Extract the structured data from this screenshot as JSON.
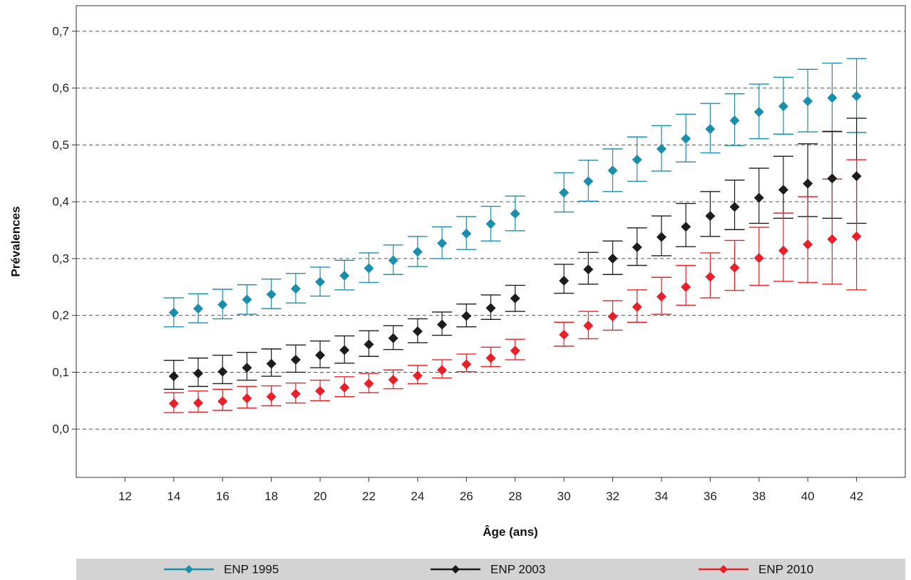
{
  "chart_data": {
    "type": "scatter",
    "xlabel": "Âge (ans)",
    "ylabel": "Prévalences",
    "xlim": [
      10,
      44
    ],
    "ylim": [
      -0.085,
      0.745
    ],
    "x_ticks": [
      "12",
      "14",
      "16",
      "18",
      "20",
      "22",
      "24",
      "26",
      "28",
      "30",
      "32",
      "34",
      "36",
      "38",
      "40",
      "42"
    ],
    "y_ticks": [
      "0,0",
      "0,1",
      "0,2",
      "0,3",
      "0,4",
      "0,5",
      "0,6",
      "0,7"
    ],
    "grid": "horizontal-dashed",
    "legend_position": "bottom",
    "series": [
      {
        "name": "ENP 1995",
        "color": "#1a8fac",
        "x": [
          14,
          15,
          16,
          17,
          18,
          19,
          20,
          21,
          22,
          23,
          24,
          25,
          26,
          27,
          28,
          30,
          31,
          32,
          33,
          34,
          35,
          36,
          37,
          38,
          39,
          40,
          41,
          42
        ],
        "values": [
          0.205,
          0.212,
          0.219,
          0.228,
          0.237,
          0.247,
          0.259,
          0.27,
          0.283,
          0.297,
          0.312,
          0.327,
          0.344,
          0.361,
          0.379,
          0.416,
          0.436,
          0.455,
          0.474,
          0.493,
          0.511,
          0.528,
          0.543,
          0.558,
          0.568,
          0.577,
          0.583,
          0.586
        ],
        "lower": [
          0.18,
          0.187,
          0.194,
          0.202,
          0.212,
          0.222,
          0.234,
          0.245,
          0.258,
          0.272,
          0.286,
          0.3,
          0.316,
          0.331,
          0.349,
          0.382,
          0.401,
          0.418,
          0.436,
          0.454,
          0.47,
          0.486,
          0.499,
          0.511,
          0.519,
          0.523,
          0.523,
          0.522
        ],
        "upper": [
          0.231,
          0.238,
          0.246,
          0.254,
          0.264,
          0.274,
          0.285,
          0.297,
          0.31,
          0.324,
          0.339,
          0.356,
          0.374,
          0.392,
          0.41,
          0.451,
          0.473,
          0.493,
          0.514,
          0.534,
          0.554,
          0.573,
          0.59,
          0.607,
          0.619,
          0.633,
          0.644,
          0.652
        ]
      },
      {
        "name": "ENP 2003",
        "color": "#1c1c1c",
        "x": [
          14,
          15,
          16,
          17,
          18,
          19,
          20,
          21,
          22,
          23,
          24,
          25,
          26,
          27,
          28,
          30,
          31,
          32,
          33,
          34,
          35,
          36,
          37,
          38,
          39,
          40,
          41,
          42
        ],
        "values": [
          0.093,
          0.098,
          0.101,
          0.108,
          0.115,
          0.122,
          0.13,
          0.139,
          0.149,
          0.16,
          0.172,
          0.184,
          0.199,
          0.213,
          0.23,
          0.261,
          0.281,
          0.3,
          0.32,
          0.338,
          0.356,
          0.375,
          0.391,
          0.407,
          0.421,
          0.432,
          0.441,
          0.445
        ],
        "lower": [
          0.07,
          0.075,
          0.08,
          0.086,
          0.093,
          0.1,
          0.108,
          0.116,
          0.128,
          0.14,
          0.152,
          0.165,
          0.18,
          0.193,
          0.207,
          0.239,
          0.255,
          0.272,
          0.288,
          0.305,
          0.321,
          0.339,
          0.351,
          0.362,
          0.371,
          0.374,
          0.371,
          0.362
        ],
        "upper": [
          0.121,
          0.125,
          0.13,
          0.135,
          0.141,
          0.148,
          0.155,
          0.164,
          0.173,
          0.182,
          0.194,
          0.206,
          0.22,
          0.236,
          0.253,
          0.29,
          0.311,
          0.331,
          0.354,
          0.375,
          0.397,
          0.418,
          0.438,
          0.459,
          0.48,
          0.502,
          0.524,
          0.547
        ]
      },
      {
        "name": "ENP 2010",
        "color": "#e8202a",
        "x": [
          14,
          15,
          16,
          17,
          18,
          19,
          20,
          21,
          22,
          23,
          24,
          25,
          26,
          27,
          28,
          30,
          31,
          32,
          33,
          34,
          35,
          36,
          37,
          38,
          39,
          40,
          41,
          42
        ],
        "values": [
          0.045,
          0.046,
          0.049,
          0.054,
          0.057,
          0.062,
          0.067,
          0.073,
          0.08,
          0.087,
          0.094,
          0.104,
          0.114,
          0.125,
          0.138,
          0.166,
          0.182,
          0.198,
          0.215,
          0.233,
          0.25,
          0.268,
          0.284,
          0.301,
          0.314,
          0.325,
          0.334,
          0.339
        ],
        "lower": [
          0.029,
          0.03,
          0.033,
          0.037,
          0.041,
          0.046,
          0.05,
          0.057,
          0.064,
          0.071,
          0.08,
          0.09,
          0.101,
          0.11,
          0.122,
          0.146,
          0.159,
          0.174,
          0.188,
          0.202,
          0.218,
          0.231,
          0.244,
          0.253,
          0.26,
          0.258,
          0.255,
          0.245
        ],
        "upper": [
          0.064,
          0.067,
          0.07,
          0.075,
          0.076,
          0.081,
          0.086,
          0.092,
          0.098,
          0.104,
          0.112,
          0.122,
          0.132,
          0.144,
          0.158,
          0.188,
          0.207,
          0.226,
          0.245,
          0.267,
          0.288,
          0.31,
          0.332,
          0.355,
          0.38,
          0.409,
          0.44,
          0.474
        ]
      }
    ]
  }
}
